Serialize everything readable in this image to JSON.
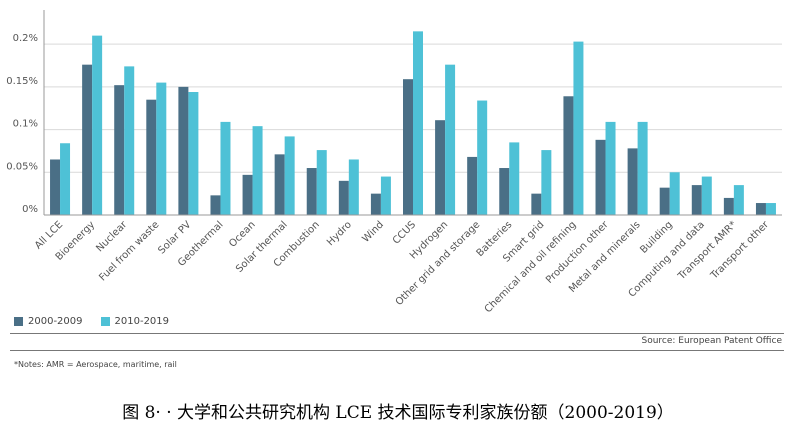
{
  "chart_data": {
    "type": "bar",
    "title": "",
    "xlabel": "",
    "ylabel": "",
    "ylim": [
      0,
      0.24
    ],
    "yticks": [
      {
        "value": 0,
        "label": "0%"
      },
      {
        "value": 0.05,
        "label": "0.05%"
      },
      {
        "value": 0.1,
        "label": "0.1%"
      },
      {
        "value": 0.15,
        "label": "0.15%"
      },
      {
        "value": 0.2,
        "label": "0.2%"
      }
    ],
    "grid": true,
    "legend_position": "bottom-left",
    "categories": [
      "All LCE",
      "Bioenergy",
      "Nuclear",
      "Fuel from waste",
      "Solar PV",
      "Geothermal",
      "Ocean",
      "Solar thermal",
      "Combustion",
      "Hydro",
      "Wind",
      "CCUS",
      "Hydrogen",
      "Other grid and storage",
      "Batteries",
      "Smart grid",
      "Chemical and oil refining",
      "Production other",
      "Metal and minerals",
      "Building",
      "Computing and data",
      "Transport AMR*",
      "Transport other"
    ],
    "series": [
      {
        "name": "2000-2009",
        "color": "#4a6f86",
        "values": [
          0.065,
          0.176,
          0.152,
          0.135,
          0.15,
          0.023,
          0.047,
          0.071,
          0.055,
          0.04,
          0.025,
          0.159,
          0.111,
          0.068,
          0.055,
          0.025,
          0.139,
          0.088,
          0.078,
          0.032,
          0.035,
          0.02,
          0.014
        ]
      },
      {
        "name": "2010-2019",
        "color": "#4ec1d6",
        "values": [
          0.084,
          0.21,
          0.174,
          0.155,
          0.144,
          0.109,
          0.104,
          0.092,
          0.076,
          0.065,
          0.045,
          0.215,
          0.176,
          0.134,
          0.085,
          0.076,
          0.203,
          0.109,
          0.109,
          0.05,
          0.045,
          0.035,
          0.014
        ]
      }
    ]
  },
  "footer": {
    "source": "Source: European Patent Office",
    "notes": "*Notes: AMR = Aerospace, maritime, rail",
    "caption": "图 8· · 大学和公共研究机构 LCE 技术国际专利家族份额（2000-2019）"
  }
}
